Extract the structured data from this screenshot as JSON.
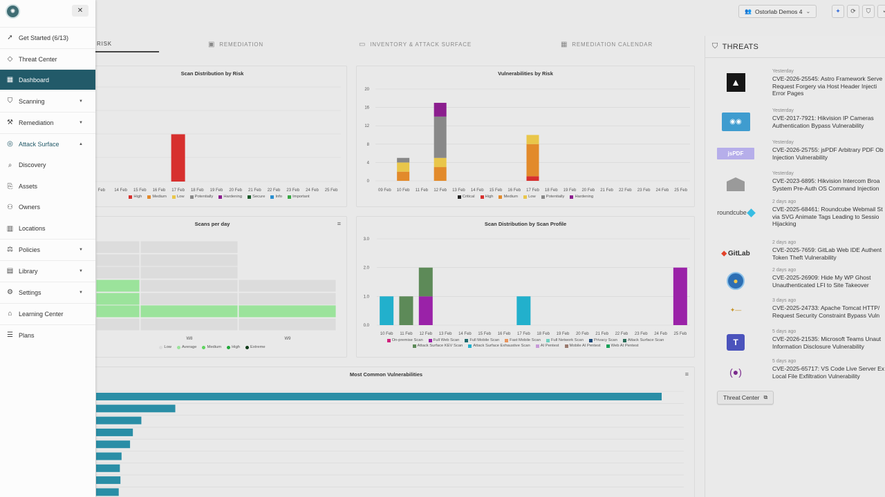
{
  "header": {
    "org_name": "Ostorlab Demos 4",
    "icons": [
      "sparkle-icon",
      "refresh-icon",
      "shield-icon",
      "user-icon"
    ]
  },
  "tabs": [
    {
      "label": "Risk",
      "active": true
    },
    {
      "label": "Remediation",
      "active": false
    },
    {
      "label": "Inventory & Attack Surface",
      "active": false
    },
    {
      "label": "Remediation Calendar",
      "active": false
    }
  ],
  "sidebar": {
    "items": [
      {
        "label": "Get Started (6/13)",
        "icon": "rocket-icon"
      },
      {
        "label": "Threat Center",
        "icon": "diamond-icon"
      },
      {
        "label": "Dashboard",
        "icon": "dashboard-icon",
        "active": true
      },
      {
        "label": "Scanning",
        "icon": "shield-icon",
        "expandable": true
      },
      {
        "label": "Remediation",
        "icon": "wrench-icon",
        "expandable": true
      },
      {
        "label": "Attack Surface",
        "icon": "radar-icon",
        "expanded": true
      },
      {
        "label": "Discovery",
        "icon": "search-icon",
        "sub": true
      },
      {
        "label": "Assets",
        "icon": "assets-icon",
        "sub": true
      },
      {
        "label": "Owners",
        "icon": "users-icon",
        "sub": true
      },
      {
        "label": "Locations",
        "icon": "building-icon",
        "sub": true
      },
      {
        "label": "Policies",
        "icon": "gavel-icon",
        "expandable": true
      },
      {
        "label": "Library",
        "icon": "library-icon",
        "expandable": true
      },
      {
        "label": "Settings",
        "icon": "gear-icon",
        "expandable": true
      },
      {
        "label": "Learning Center",
        "icon": "graduation-icon"
      },
      {
        "label": "Plans",
        "icon": "plans-icon"
      }
    ]
  },
  "charts": {
    "scan_distribution_by_risk": {
      "title": "Scan Distribution by Risk",
      "categories": [
        "Feb",
        "14 Feb",
        "15 Feb",
        "16 Feb",
        "17 Feb",
        "18 Feb",
        "19 Feb",
        "20 Feb",
        "21 Feb",
        "22 Feb",
        "23 Feb",
        "24 Feb",
        "25 Feb"
      ],
      "legend": [
        {
          "name": "High",
          "color": "#d7302e"
        },
        {
          "name": "Medium",
          "color": "#e28a2b"
        },
        {
          "name": "Low",
          "color": "#e9c64a"
        },
        {
          "name": "Potentially",
          "color": "#888888"
        },
        {
          "name": "Hardening",
          "color": "#8b1e8e"
        },
        {
          "name": "Secure",
          "color": "#1a5a2a"
        },
        {
          "name": "Info",
          "color": "#2a8fd0"
        },
        {
          "name": "Important",
          "color": "#39a845"
        }
      ],
      "bars": [
        {
          "category": "17 Feb",
          "series": "High",
          "value": 1
        }
      ],
      "ymax": 2
    },
    "vulnerabilities_by_risk": {
      "title": "Vulnerabilities by Risk",
      "categories": [
        "09 Feb",
        "10 Feb",
        "11 Feb",
        "12 Feb",
        "13 Feb",
        "14 Feb",
        "15 Feb",
        "16 Feb",
        "17 Feb",
        "18 Feb",
        "19 Feb",
        "20 Feb",
        "21 Feb",
        "22 Feb",
        "23 Feb",
        "24 Feb",
        "25 Feb"
      ],
      "yticks": [
        "20",
        "16",
        "12",
        "8",
        "4",
        "0"
      ],
      "ymax": 20,
      "legend": [
        {
          "name": "Critical",
          "color": "#222222"
        },
        {
          "name": "High",
          "color": "#d7302e"
        },
        {
          "name": "Medium",
          "color": "#e28a2b"
        },
        {
          "name": "Low",
          "color": "#e9c64a"
        },
        {
          "name": "Potentially",
          "color": "#888888"
        },
        {
          "name": "Hardening",
          "color": "#8b1e8e"
        }
      ],
      "stacks": [
        {
          "category": "10 Feb",
          "segments": [
            {
              "series": "Medium",
              "value": 2
            },
            {
              "series": "Low",
              "value": 2
            },
            {
              "series": "Potentially",
              "value": 1
            }
          ]
        },
        {
          "category": "12 Feb",
          "segments": [
            {
              "series": "Medium",
              "value": 3
            },
            {
              "series": "Low",
              "value": 2
            },
            {
              "series": "Potentially",
              "value": 9
            },
            {
              "series": "Hardening",
              "value": 3
            }
          ]
        },
        {
          "category": "17 Feb",
          "segments": [
            {
              "series": "High",
              "value": 1
            },
            {
              "series": "Medium",
              "value": 7
            },
            {
              "series": "Low",
              "value": 2
            }
          ]
        }
      ]
    },
    "scans_per_day": {
      "title": "Scans per day",
      "xlabels": [
        "W8",
        "W9"
      ],
      "legend": [
        {
          "name": "Low",
          "color": "#dcdcdc"
        },
        {
          "name": "Average",
          "color": "#9be39b"
        },
        {
          "name": "Medium",
          "color": "#5fd45f"
        },
        {
          "name": "High",
          "color": "#22a83a"
        },
        {
          "name": "Extreme",
          "color": "#0d3a18"
        }
      ]
    },
    "scan_distribution_by_profile": {
      "title": "Scan Distribution by Scan Profile",
      "categories": [
        "10 Feb",
        "11 Feb",
        "12 Feb",
        "13 Feb",
        "14 Feb",
        "15 Feb",
        "16 Feb",
        "17 Feb",
        "18 Feb",
        "19 Feb",
        "20 Feb",
        "21 Feb",
        "22 Feb",
        "23 Feb",
        "24 Feb",
        "25 Feb"
      ],
      "yticks": [
        "3.0",
        "2.0",
        "1.0",
        "0.0"
      ],
      "ymax": 3,
      "legend": [
        {
          "name": "On-premise Scan",
          "color": "#d1227c"
        },
        {
          "name": "Full Web Scan",
          "color": "#9a22a8"
        },
        {
          "name": "Full Mobile Scan",
          "color": "#1f6a6e"
        },
        {
          "name": "Fast Mobile Scan",
          "color": "#e8945c"
        },
        {
          "name": "Full Network Scan",
          "color": "#6fd0c0"
        },
        {
          "name": "Privacy Scan",
          "color": "#1b4a7a"
        },
        {
          "name": "Attack Surface Scan",
          "color": "#2b6e5a"
        },
        {
          "name": "Attack Surface KEV Scan",
          "color": "#5d8a58"
        },
        {
          "name": "Attack Surface Exhaustive Scan",
          "color": "#22b0cc"
        },
        {
          "name": "AI Pentest",
          "color": "#c79ad8"
        },
        {
          "name": "Mobile AI Pentest",
          "color": "#9a7a6e"
        },
        {
          "name": "Web AI Pentest",
          "color": "#18a058"
        }
      ],
      "bars": [
        {
          "category": "10 Feb",
          "segments": [
            {
              "series": "Attack Surface Exhaustive Scan",
              "value": 1
            }
          ]
        },
        {
          "category": "11 Feb",
          "segments": [
            {
              "series": "Attack Surface KEV Scan",
              "value": 1
            }
          ]
        },
        {
          "category": "12 Feb",
          "segments": [
            {
              "series": "Full Web Scan",
              "value": 1
            },
            {
              "series": "Attack Surface KEV Scan",
              "value": 1
            }
          ]
        },
        {
          "category": "17 Feb",
          "segments": [
            {
              "series": "Attack Surface Exhaustive Scan",
              "value": 1
            }
          ]
        },
        {
          "category": "25 Feb",
          "segments": [
            {
              "series": "Full Web Scan",
              "value": 2
            }
          ]
        }
      ]
    },
    "most_common_vulnerabilities": {
      "title": "Most Common Vulnerabilities",
      "color": "#2a8ea6",
      "relative_values": [
        1.0,
        0.14,
        0.08,
        0.065,
        0.06,
        0.045,
        0.042,
        0.043,
        0.04,
        0.033
      ]
    }
  },
  "threats": {
    "title": "THREATS",
    "button_label": "Threat Center",
    "items": [
      {
        "when": "Yesterday",
        "lines": [
          "CVE-2026-25545: Astro Framework Serve",
          "Request Forgery via Host Header Injecti",
          "Error Pages"
        ],
        "logo": "astro-logo"
      },
      {
        "when": "Yesterday",
        "lines": [
          "CVE-2017-7921: Hikvision IP Cameras",
          "Authentication Bypass Vulnerability"
        ],
        "logo": "hikvision-camera-logo"
      },
      {
        "when": "Yesterday",
        "lines": [
          "CVE-2026-25755: jsPDF Arbitrary PDF Ob",
          "Injection Vulnerability"
        ],
        "logo": "jspdf-logo",
        "logo_text": "jsPDF"
      },
      {
        "when": "Yesterday",
        "lines": [
          "CVE-2023-6895: Hikvision Intercom Broa",
          "System Pre-Auth OS Command Injection"
        ],
        "logo": "hikvision-intercom-logo"
      },
      {
        "when": "2 days ago",
        "lines": [
          "CVE-2025-68461: Roundcube Webmail St",
          "via SVG Animate Tags Leading to Sessio",
          "Hijacking"
        ],
        "logo": "roundcube-logo",
        "logo_text": "roundcube"
      },
      {
        "when": "2 days ago",
        "lines": [
          "CVE-2025-7659: GitLab Web IDE Authent",
          "Token Theft Vulnerability"
        ],
        "logo": "gitlab-logo",
        "logo_text": "GitLab"
      },
      {
        "when": "2 days ago",
        "lines": [
          "CVE-2025-26909: Hide My WP Ghost",
          "Unauthenticated LFI to Site Takeover"
        ],
        "logo": "hidemywp-logo"
      },
      {
        "when": "3 days ago",
        "lines": [
          "CVE-2025-24733: Apache Tomcat HTTP/",
          "Request Security Constraint Bypass Vuln"
        ],
        "logo": "tomcat-logo"
      },
      {
        "when": "5 days ago",
        "lines": [
          "CVE-2026-21535: Microsoft Teams Unaut",
          "Information Disclosure Vulnerability"
        ],
        "logo": "teams-logo"
      },
      {
        "when": "5 days ago",
        "lines": [
          "CVE-2025-65717: VS Code Live Server Ex",
          "Local File Exfiltration Vulnerability"
        ],
        "logo": "live-server-logo"
      }
    ]
  }
}
